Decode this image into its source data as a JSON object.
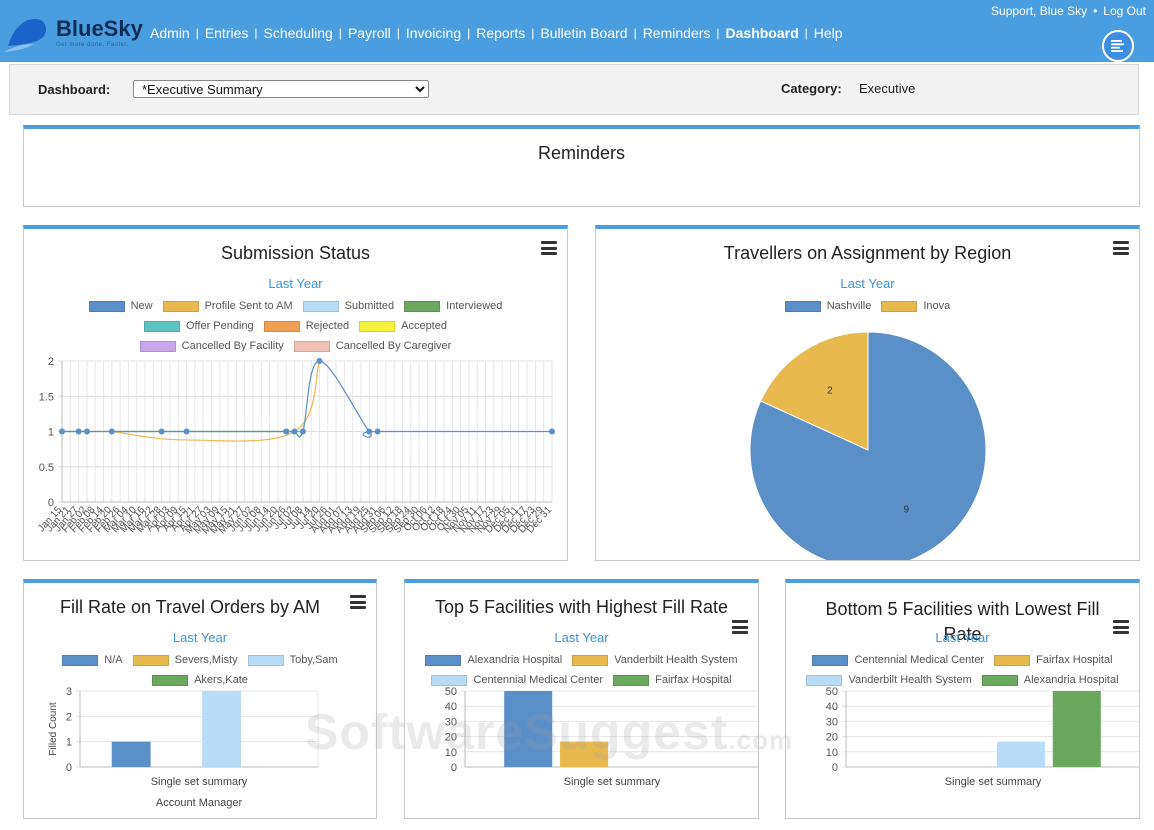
{
  "header": {
    "logo_text": "BlueSky",
    "logo_tagline": "Get more done. Faster.",
    "nav": [
      {
        "label": "Admin",
        "active": false
      },
      {
        "label": "Entries",
        "active": false
      },
      {
        "label": "Scheduling",
        "active": false
      },
      {
        "label": "Payroll",
        "active": false
      },
      {
        "label": "Invoicing",
        "active": false
      },
      {
        "label": "Reports",
        "active": false
      },
      {
        "label": "Bulletin Board",
        "active": false
      },
      {
        "label": "Reminders",
        "active": false
      },
      {
        "label": "Dashboard",
        "active": true
      },
      {
        "label": "Help",
        "active": false
      }
    ],
    "user": "Support, Blue Sky",
    "logout": "Log Out",
    "menu_icon": "list-menu-icon"
  },
  "dashboard_bar": {
    "label": "Dashboard:",
    "selected": "*Executive Summary",
    "category_label": "Category:",
    "category_value": "Executive"
  },
  "panels": {
    "reminders": {
      "title": "Reminders"
    },
    "submission": {
      "title": "Submission Status",
      "subtitle": "Last Year",
      "legend": [
        {
          "name": "New",
          "color": "#5b8fc7"
        },
        {
          "name": "Profile Sent to AM",
          "color": "#e8b94f"
        },
        {
          "name": "Submitted",
          "color": "#b8dcf5"
        },
        {
          "name": "Interviewed",
          "color": "#6aa85e"
        },
        {
          "name": "Offer Pending",
          "color": "#5cc4c0"
        },
        {
          "name": "Rejected",
          "color": "#f0a050"
        },
        {
          "name": "Accepted",
          "color": "#f5f23c"
        },
        {
          "name": "Cancelled By Facility",
          "color": "#c8a6ea"
        },
        {
          "name": "Cancelled By Caregiver",
          "color": "#f2bfb4"
        }
      ]
    },
    "travellers": {
      "title": "Travellers on Assignment by Region",
      "subtitle": "Last Year",
      "legend": [
        {
          "name": "Nashville",
          "color": "#5b8fc7"
        },
        {
          "name": "Inova",
          "color": "#e8b94f"
        }
      ]
    },
    "fill_rate": {
      "title": "Fill Rate on Travel Orders by AM",
      "subtitle": "Last Year",
      "legend": [
        {
          "name": "N/A",
          "color": "#5b8fc7"
        },
        {
          "name": "Severs,Misty",
          "color": "#e8b94f"
        },
        {
          "name": "Toby,Sam",
          "color": "#b8dcf5"
        },
        {
          "name": "Akers,Kate",
          "color": "#6aa85e"
        }
      ]
    },
    "top5": {
      "title": "Top 5 Facilities with Highest Fill Rate",
      "subtitle": "Last Year",
      "legend": [
        {
          "name": "Alexandria Hospital",
          "color": "#5b8fc7"
        },
        {
          "name": "Vanderbilt Health System",
          "color": "#e8b94f"
        },
        {
          "name": "Centennial Medical Center",
          "color": "#b8dcf5"
        },
        {
          "name": "Fairfax Hospital",
          "color": "#6aa85e"
        }
      ]
    },
    "bottom5": {
      "title": "Bottom 5 Facilities with Lowest Fill Rate",
      "subtitle": "Last Year",
      "legend": [
        {
          "name": "Centennial Medical Center",
          "color": "#5b8fc7"
        },
        {
          "name": "Fairfax Hospital",
          "color": "#e8b94f"
        },
        {
          "name": "Vanderbilt Health System",
          "color": "#b8dcf5"
        },
        {
          "name": "Alexandria Hospital",
          "color": "#6aa85e"
        }
      ]
    }
  },
  "chart_data": [
    {
      "id": "submission",
      "type": "line",
      "title": "Submission Status",
      "subtitle": "Last Year",
      "ylim": [
        0,
        2
      ],
      "yticks": [
        0,
        0.5,
        1,
        1.5,
        2
      ],
      "ytick_labels": [
        "0",
        "0.5",
        "1",
        "1.5",
        "2"
      ],
      "x": [
        "Jan 15",
        "Jan 21",
        "Jan 27",
        "Feb 02",
        "Feb 08",
        "Feb 14",
        "Feb 20",
        "Feb 26",
        "Mar 04",
        "Mar 10",
        "Mar 16",
        "Mar 22",
        "Mar 28",
        "Apr 03",
        "Apr 09",
        "Apr 15",
        "Apr 21",
        "Apr 27",
        "May 03",
        "May 09",
        "May 15",
        "May 21",
        "May 27",
        "Jun 02",
        "Jun 08",
        "Jun 14",
        "Jun 20",
        "Jun 26",
        "Jul 02",
        "Jul 08",
        "Jul 14",
        "Jul 20",
        "Jul 26",
        "Aug 01",
        "Aug 07",
        "Aug 13",
        "Aug 19",
        "Aug 25",
        "Aug 31",
        "Sep 06",
        "Sep 12",
        "Sep 18",
        "Sep 24",
        "Sep 30",
        "Oct 06",
        "Oct 12",
        "Oct 18",
        "Oct 24",
        "Oct 30",
        "Nov 05",
        "Nov 11",
        "Nov 17",
        "Nov 23",
        "Nov 29",
        "Dec 05",
        "Dec 11",
        "Dec 17",
        "Dec 23",
        "Dec 29",
        "Dec 31"
      ],
      "series": [
        {
          "name": "New",
          "color": "#5b8fc7",
          "points": [
            [
              0,
              1
            ],
            [
              2,
              1
            ],
            [
              3,
              1
            ],
            [
              6,
              1
            ],
            [
              12,
              1
            ],
            [
              15,
              1
            ],
            [
              27,
              1
            ],
            [
              28,
              1
            ],
            [
              29,
              1
            ],
            [
              31,
              2
            ],
            [
              37,
              1
            ],
            [
              38,
              1
            ],
            [
              59,
              1
            ]
          ]
        },
        {
          "name": "Profile Sent to AM",
          "color": "#e8b94f",
          "points": [
            [
              6,
              1
            ],
            [
              15,
              0.88
            ],
            [
              28,
              1
            ],
            [
              31,
              2
            ]
          ]
        },
        {
          "name": "Interviewed",
          "color": "#6aa85e",
          "points": [
            [
              0,
              1
            ],
            [
              28,
              1
            ]
          ]
        },
        {
          "name": "Offer Pending",
          "color": "#5cc4c0",
          "points": [
            [
              27,
              1
            ],
            [
              29,
              1
            ]
          ]
        }
      ]
    },
    {
      "id": "travellers",
      "type": "pie",
      "title": "Travellers on Assignment by Region",
      "subtitle": "Last Year",
      "categories": [
        "Nashville",
        "Inova"
      ],
      "values": [
        9,
        2
      ]
    },
    {
      "id": "fill_rate",
      "type": "bar",
      "title": "Fill Rate on Travel Orders by AM",
      "subtitle": "Last Year",
      "xlabel": "Account Manager",
      "ylabel": "Filled Count",
      "category": "Single set summary",
      "ylim": [
        0,
        3
      ],
      "yticks": [
        0,
        1,
        2,
        3
      ],
      "series": [
        {
          "name": "N/A",
          "value": 1,
          "color": "#5b8fc7"
        },
        {
          "name": "Severs,Misty",
          "value": 0,
          "color": "#e8b94f"
        },
        {
          "name": "Toby,Sam",
          "value": 3,
          "color": "#b8dcf5"
        },
        {
          "name": "Akers,Kate",
          "value": 0,
          "color": "#6aa85e"
        }
      ]
    },
    {
      "id": "top5",
      "type": "bar",
      "title": "Top 5 Facilities with Highest Fill Rate",
      "subtitle": "Last Year",
      "category": "Single set summary",
      "ylim": [
        0,
        50
      ],
      "yticks": [
        0,
        10,
        20,
        30,
        40,
        50
      ],
      "series": [
        {
          "name": "Alexandria Hospital",
          "value": 50,
          "color": "#5b8fc7"
        },
        {
          "name": "Vanderbilt Health System",
          "value": 16.7,
          "color": "#e8b94f"
        },
        {
          "name": "Centennial Medical Center",
          "value": 0,
          "color": "#b8dcf5"
        },
        {
          "name": "Fairfax Hospital",
          "value": 0,
          "color": "#6aa85e"
        }
      ]
    },
    {
      "id": "bottom5",
      "type": "bar",
      "title": "Bottom 5 Facilities with Lowest Fill Rate",
      "subtitle": "Last Year",
      "category": "Single set summary",
      "ylim": [
        0,
        50
      ],
      "yticks": [
        0,
        10,
        20,
        30,
        40,
        50
      ],
      "series": [
        {
          "name": "Centennial Medical Center",
          "value": 0,
          "color": "#5b8fc7"
        },
        {
          "name": "Fairfax Hospital",
          "value": 0,
          "color": "#e8b94f"
        },
        {
          "name": "Vanderbilt Health System",
          "value": 16.7,
          "color": "#b8dcf5"
        },
        {
          "name": "Alexandria Hospital",
          "value": 50,
          "color": "#6aa85e"
        }
      ]
    }
  ],
  "watermark": {
    "main": "SoftwareSuggest",
    "suffix": ".com"
  }
}
